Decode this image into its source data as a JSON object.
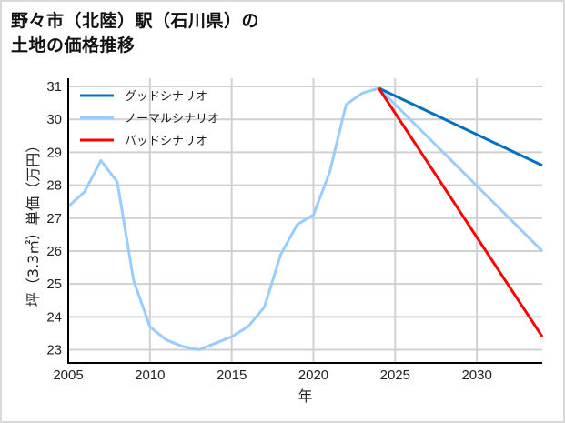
{
  "title_line1": "野々市（北陸）駅（石川県）の",
  "title_line2": "土地の価格推移",
  "chart_data": {
    "type": "line",
    "title": "野々市（北陸）駅（石川県）の土地の価格推移",
    "xlabel": "年",
    "ylabel": "坪（3.3㎡）単価（万円）",
    "xlim": [
      2005,
      2034
    ],
    "ylim": [
      22.6,
      31.25
    ],
    "xticks": [
      2005,
      2010,
      2015,
      2020,
      2025,
      2030
    ],
    "yticks": [
      23,
      24,
      25,
      26,
      27,
      28,
      29,
      30,
      31
    ],
    "grid": true,
    "legend_position": "upper left",
    "historical": {
      "x": [
        2005,
        2006,
        2007,
        2008,
        2009,
        2010,
        2011,
        2012,
        2013,
        2014,
        2015,
        2016,
        2017,
        2018,
        2019,
        2020,
        2021,
        2022,
        2023,
        2024
      ],
      "y": [
        27.35,
        27.8,
        28.75,
        28.1,
        25.1,
        23.7,
        23.3,
        23.1,
        23.0,
        23.2,
        23.4,
        23.7,
        24.3,
        25.9,
        26.8,
        27.1,
        28.4,
        30.45,
        30.8,
        30.95
      ]
    },
    "series": [
      {
        "name": "グッドシナリオ",
        "color": "#0070c0",
        "x": [
          2024,
          2034
        ],
        "y": [
          30.95,
          28.6
        ]
      },
      {
        "name": "ノーマルシナリオ",
        "color": "#99ccff",
        "x": [
          2024,
          2034
        ],
        "y": [
          30.95,
          26.0
        ]
      },
      {
        "name": "バッドシナリオ",
        "color": "#ff0000",
        "x": [
          2024,
          2034
        ],
        "y": [
          30.95,
          23.4
        ]
      }
    ],
    "historical_color": "#99ccff"
  }
}
